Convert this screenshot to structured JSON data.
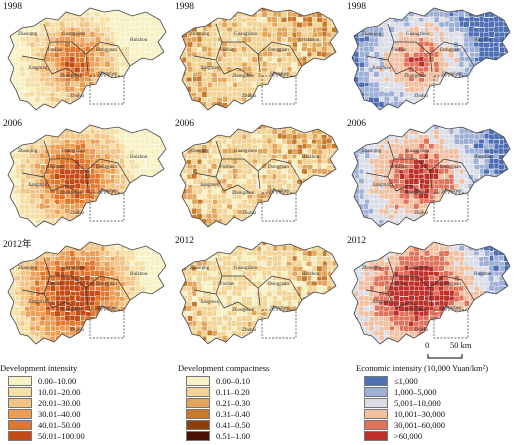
{
  "years": [
    "1998",
    "2006",
    "2012年",
    "1998",
    "2006",
    "2012",
    "1998",
    "2006",
    "2012"
  ],
  "cities": [
    "Zhaoqing",
    "Guangzhou",
    "Foshan",
    "Dongguan",
    "Huizhou",
    "Jiangmen",
    "Zhongshan",
    "Shenzhen",
    "Zhuhai"
  ],
  "legends": [
    {
      "title": "Development intensity",
      "items": [
        {
          "label": "0.00–10.00",
          "color": "#f7f1c4"
        },
        {
          "label": "10.01–20.00",
          "color": "#f6dfa6"
        },
        {
          "label": "20.01–30.00",
          "color": "#f2c486"
        },
        {
          "label": "30.01–40.00",
          "color": "#ec9e55"
        },
        {
          "label": "40.01–50.00",
          "color": "#e1772d"
        },
        {
          "label": "50.01–100.00",
          "color": "#c24b17"
        }
      ]
    },
    {
      "title": "Development  compactness",
      "items": [
        {
          "label": "0.00–0.10",
          "color": "#f6f0c3"
        },
        {
          "label": "0.11–0.20",
          "color": "#f1d496"
        },
        {
          "label": "0.21–0.30",
          "color": "#e2a55c"
        },
        {
          "label": "0.31–0.40",
          "color": "#c87a2c"
        },
        {
          "label": "0.41–0.50",
          "color": "#8f3f0e"
        },
        {
          "label": "0.51–1.00",
          "color": "#4a1204"
        }
      ]
    },
    {
      "title": "Economic intensity (10,000 Yuan/km²)",
      "items": [
        {
          "label": "≤1,000",
          "color": "#4f6fb5"
        },
        {
          "label": "1,000–5,000",
          "color": "#9fb0d6"
        },
        {
          "label": "5,001–10,000",
          "color": "#dcdde7"
        },
        {
          "label": "10,001–30,000",
          "color": "#f2c1a2"
        },
        {
          "label": "30,001–60,000",
          "color": "#e1735c"
        },
        {
          "label": ">60,000",
          "color": "#c0302a"
        }
      ]
    }
  ],
  "scale": {
    "zero": "0",
    "distance": "50 km"
  }
}
